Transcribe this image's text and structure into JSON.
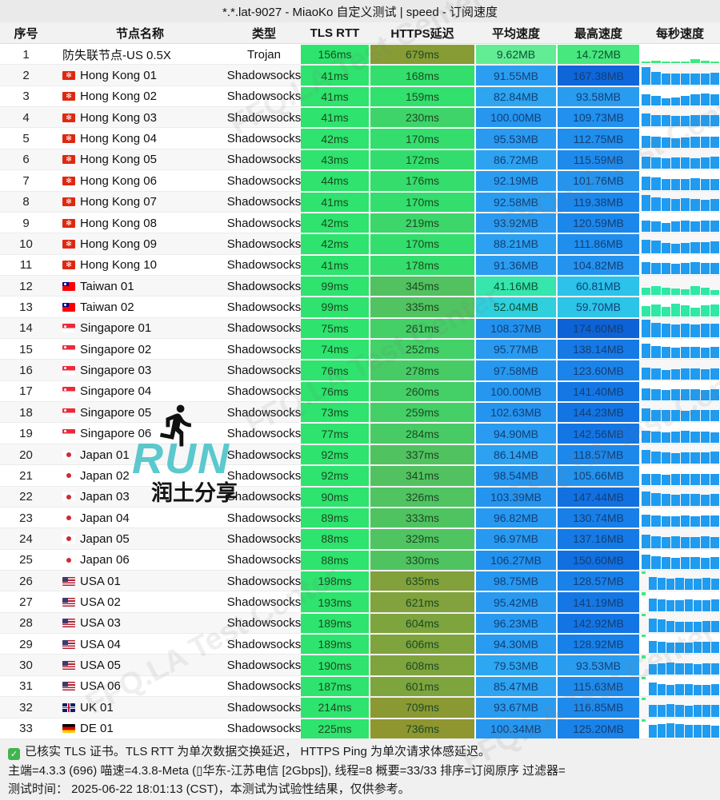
{
  "title": "*.*.lat-9027 - MiaoKo 自定义测试 | speed - 订阅速度",
  "columns": [
    {
      "key": "index",
      "label": "序号"
    },
    {
      "key": "name",
      "label": "节点名称"
    },
    {
      "key": "type",
      "label": "类型"
    },
    {
      "key": "tls_rtt",
      "label": "TLS RTT"
    },
    {
      "key": "https_delay",
      "label": "HTTPS延迟"
    },
    {
      "key": "avg_speed",
      "label": "平均速度"
    },
    {
      "key": "max_speed",
      "label": "最高速度"
    },
    {
      "key": "per_second_speed",
      "label": "每秒速度"
    }
  ],
  "rows": [
    {
      "i": 1,
      "flag": "",
      "name": "防失联节点-US 0.5X",
      "type": "Trojan",
      "tls": "156ms",
      "https": "679ms",
      "avg": "9.62MB",
      "max": "14.72MB",
      "spark": {
        "c": "green",
        "lead": false,
        "bars": [
          0.1,
          0.13,
          0.1,
          0.12,
          0.11,
          0.22,
          0.16,
          0.1
        ]
      }
    },
    {
      "i": 2,
      "flag": "hk",
      "name": "Hong Kong 01",
      "type": "Shadowsocks",
      "tls": "41ms",
      "https": "168ms",
      "avg": "91.55MB",
      "max": "167.38MB",
      "spark": {
        "c": "blue",
        "lead": false,
        "bars": [
          0.95,
          0.66,
          0.6,
          0.58,
          0.6,
          0.57,
          0.6,
          0.62
        ]
      }
    },
    {
      "i": 3,
      "flag": "hk",
      "name": "Hong Kong 02",
      "type": "Shadowsocks",
      "tls": "41ms",
      "https": "159ms",
      "avg": "82.84MB",
      "max": "93.58MB",
      "spark": {
        "c": "blue",
        "lead": false,
        "bars": [
          0.6,
          0.52,
          0.38,
          0.45,
          0.52,
          0.6,
          0.66,
          0.62
        ]
      }
    },
    {
      "i": 4,
      "flag": "hk",
      "name": "Hong Kong 03",
      "type": "Shadowsocks",
      "tls": "41ms",
      "https": "230ms",
      "avg": "100.00MB",
      "max": "109.73MB",
      "spark": {
        "c": "blue",
        "lead": false,
        "bars": [
          0.7,
          0.64,
          0.6,
          0.58,
          0.56,
          0.6,
          0.63,
          0.6
        ]
      }
    },
    {
      "i": 5,
      "flag": "hk",
      "name": "Hong Kong 04",
      "type": "Shadowsocks",
      "tls": "42ms",
      "https": "170ms",
      "avg": "95.53MB",
      "max": "112.75MB",
      "spark": {
        "c": "blue",
        "lead": false,
        "bars": [
          0.62,
          0.6,
          0.55,
          0.52,
          0.56,
          0.6,
          0.58,
          0.6
        ]
      }
    },
    {
      "i": 6,
      "flag": "hk",
      "name": "Hong Kong 05",
      "type": "Shadowsocks",
      "tls": "43ms",
      "https": "172ms",
      "avg": "86.72MB",
      "max": "115.59MB",
      "spark": {
        "c": "blue",
        "lead": false,
        "bars": [
          0.66,
          0.6,
          0.56,
          0.6,
          0.62,
          0.58,
          0.6,
          0.64
        ]
      }
    },
    {
      "i": 7,
      "flag": "hk",
      "name": "Hong Kong 06",
      "type": "Shadowsocks",
      "tls": "44ms",
      "https": "176ms",
      "avg": "92.19MB",
      "max": "101.76MB",
      "spark": {
        "c": "blue",
        "lead": false,
        "bars": [
          0.72,
          0.66,
          0.6,
          0.56,
          0.6,
          0.63,
          0.6,
          0.58
        ]
      }
    },
    {
      "i": 8,
      "flag": "hk",
      "name": "Hong Kong 07",
      "type": "Shadowsocks",
      "tls": "41ms",
      "https": "170ms",
      "avg": "92.58MB",
      "max": "119.38MB",
      "spark": {
        "c": "blue",
        "lead": false,
        "bars": [
          0.85,
          0.72,
          0.68,
          0.64,
          0.66,
          0.62,
          0.6,
          0.64
        ]
      }
    },
    {
      "i": 9,
      "flag": "hk",
      "name": "Hong Kong 08",
      "type": "Shadowsocks",
      "tls": "42ms",
      "https": "219ms",
      "avg": "93.92MB",
      "max": "120.59MB",
      "spark": {
        "c": "blue",
        "lead": false,
        "bars": [
          0.6,
          0.55,
          0.5,
          0.55,
          0.6,
          0.58,
          0.62,
          0.6
        ]
      }
    },
    {
      "i": 10,
      "flag": "hk",
      "name": "Hong Kong 09",
      "type": "Shadowsocks",
      "tls": "42ms",
      "https": "170ms",
      "avg": "88.21MB",
      "max": "111.86MB",
      "spark": {
        "c": "blue",
        "lead": false,
        "bars": [
          0.7,
          0.66,
          0.55,
          0.5,
          0.56,
          0.6,
          0.58,
          0.62
        ]
      }
    },
    {
      "i": 11,
      "flag": "hk",
      "name": "Hong Kong 10",
      "type": "Shadowsocks",
      "tls": "41ms",
      "https": "178ms",
      "avg": "91.36MB",
      "max": "104.82MB",
      "spark": {
        "c": "blue",
        "lead": false,
        "bars": [
          0.64,
          0.6,
          0.58,
          0.56,
          0.6,
          0.62,
          0.6,
          0.58
        ]
      }
    },
    {
      "i": 12,
      "flag": "tw",
      "name": "Taiwan 01",
      "type": "Shadowsocks",
      "tls": "99ms",
      "https": "345ms",
      "avg": "41.16MB",
      "max": "60.81MB",
      "spark": {
        "c": "teal",
        "lead": false,
        "bars": [
          0.42,
          0.5,
          0.4,
          0.35,
          0.3,
          0.48,
          0.4,
          0.28
        ]
      }
    },
    {
      "i": 13,
      "flag": "tw",
      "name": "Taiwan 02",
      "type": "Shadowsocks",
      "tls": "99ms",
      "https": "335ms",
      "avg": "52.04MB",
      "max": "59.70MB",
      "spark": {
        "c": "teal",
        "lead": false,
        "bars": [
          0.55,
          0.62,
          0.5,
          0.66,
          0.58,
          0.45,
          0.6,
          0.62
        ]
      }
    },
    {
      "i": 14,
      "flag": "sg",
      "name": "Singapore 01",
      "type": "Shadowsocks",
      "tls": "75ms",
      "https": "261ms",
      "avg": "108.37MB",
      "max": "174.60MB",
      "spark": {
        "c": "blue",
        "lead": false,
        "bars": [
          0.95,
          0.78,
          0.72,
          0.7,
          0.72,
          0.7,
          0.72,
          0.74
        ]
      }
    },
    {
      "i": 15,
      "flag": "sg",
      "name": "Singapore 02",
      "type": "Shadowsocks",
      "tls": "74ms",
      "https": "252ms",
      "avg": "95.77MB",
      "max": "138.14MB",
      "spark": {
        "c": "blue",
        "lead": false,
        "bars": [
          0.8,
          0.66,
          0.6,
          0.56,
          0.6,
          0.62,
          0.58,
          0.6
        ]
      }
    },
    {
      "i": 16,
      "flag": "sg",
      "name": "Singapore 03",
      "type": "Shadowsocks",
      "tls": "76ms",
      "https": "278ms",
      "avg": "97.58MB",
      "max": "123.60MB",
      "spark": {
        "c": "blue",
        "lead": false,
        "bars": [
          0.62,
          0.58,
          0.52,
          0.56,
          0.6,
          0.58,
          0.56,
          0.6
        ]
      }
    },
    {
      "i": 17,
      "flag": "sg",
      "name": "Singapore 04",
      "type": "Shadowsocks",
      "tls": "76ms",
      "https": "260ms",
      "avg": "100.00MB",
      "max": "141.40MB",
      "spark": {
        "c": "blue",
        "lead": false,
        "bars": [
          0.66,
          0.62,
          0.58,
          0.6,
          0.62,
          0.6,
          0.58,
          0.62
        ]
      }
    },
    {
      "i": 18,
      "flag": "sg",
      "name": "Singapore 05",
      "type": "Shadowsocks",
      "tls": "73ms",
      "https": "259ms",
      "avg": "102.63MB",
      "max": "144.23MB",
      "spark": {
        "c": "blue",
        "lead": false,
        "bars": [
          0.7,
          0.64,
          0.6,
          0.62,
          0.58,
          0.6,
          0.62,
          0.6
        ]
      }
    },
    {
      "i": 19,
      "flag": "sg",
      "name": "Singapore 06",
      "type": "Shadowsocks",
      "tls": "77ms",
      "https": "284ms",
      "avg": "94.90MB",
      "max": "142.56MB",
      "spark": {
        "c": "blue",
        "lead": false,
        "bars": [
          0.64,
          0.6,
          0.56,
          0.58,
          0.62,
          0.6,
          0.58,
          0.56
        ]
      }
    },
    {
      "i": 20,
      "flag": "jp",
      "name": "Japan 01",
      "type": "Shadowsocks",
      "tls": "92ms",
      "https": "337ms",
      "avg": "86.14MB",
      "max": "118.57MB",
      "spark": {
        "c": "blue",
        "lead": false,
        "bars": [
          0.72,
          0.66,
          0.6,
          0.58,
          0.6,
          0.62,
          0.6,
          0.64
        ]
      }
    },
    {
      "i": 21,
      "flag": "jp",
      "name": "Japan 02",
      "type": "Shadowsocks",
      "tls": "92ms",
      "https": "341ms",
      "avg": "98.54MB",
      "max": "105.66MB",
      "spark": {
        "c": "blue",
        "lead": false,
        "bars": [
          0.6,
          0.56,
          0.52,
          0.56,
          0.58,
          0.6,
          0.56,
          0.58
        ]
      }
    },
    {
      "i": 22,
      "flag": "jp",
      "name": "Japan 03",
      "type": "Shadowsocks",
      "tls": "90ms",
      "https": "326ms",
      "avg": "103.39MB",
      "max": "147.44MB",
      "spark": {
        "c": "blue",
        "lead": false,
        "bars": [
          0.78,
          0.7,
          0.64,
          0.6,
          0.62,
          0.64,
          0.6,
          0.62
        ]
      }
    },
    {
      "i": 23,
      "flag": "jp",
      "name": "Japan 04",
      "type": "Shadowsocks",
      "tls": "89ms",
      "https": "333ms",
      "avg": "96.82MB",
      "max": "130.74MB",
      "spark": {
        "c": "blue",
        "lead": false,
        "bars": [
          0.64,
          0.6,
          0.56,
          0.58,
          0.6,
          0.58,
          0.6,
          0.62
        ]
      }
    },
    {
      "i": 24,
      "flag": "jp",
      "name": "Japan 05",
      "type": "Shadowsocks",
      "tls": "88ms",
      "https": "329ms",
      "avg": "96.97MB",
      "max": "137.16MB",
      "spark": {
        "c": "blue",
        "lead": false,
        "bars": [
          0.7,
          0.64,
          0.6,
          0.62,
          0.6,
          0.58,
          0.62,
          0.6
        ]
      }
    },
    {
      "i": 25,
      "flag": "jp",
      "name": "Japan 06",
      "type": "Shadowsocks",
      "tls": "88ms",
      "https": "330ms",
      "avg": "106.27MB",
      "max": "150.60MB",
      "spark": {
        "c": "blue",
        "lead": false,
        "bars": [
          0.76,
          0.7,
          0.66,
          0.62,
          0.64,
          0.66,
          0.62,
          0.64
        ]
      }
    },
    {
      "i": 26,
      "flag": "us",
      "name": "USA 01",
      "type": "Shadowsocks",
      "tls": "198ms",
      "https": "635ms",
      "avg": "98.75MB",
      "max": "128.57MB",
      "spark": {
        "c": "blue",
        "lead": true,
        "bars": [
          0.72,
          0.66,
          0.62,
          0.64,
          0.6,
          0.62,
          0.64,
          0.6
        ]
      }
    },
    {
      "i": 27,
      "flag": "us",
      "name": "USA 02",
      "type": "Shadowsocks",
      "tls": "193ms",
      "https": "621ms",
      "avg": "95.42MB",
      "max": "141.19MB",
      "spark": {
        "c": "blue",
        "lead": true,
        "bars": [
          0.66,
          0.62,
          0.58,
          0.6,
          0.62,
          0.6,
          0.58,
          0.62
        ]
      }
    },
    {
      "i": 28,
      "flag": "us",
      "name": "USA 03",
      "type": "Shadowsocks",
      "tls": "189ms",
      "https": "604ms",
      "avg": "96.23MB",
      "max": "142.92MB",
      "spark": {
        "c": "blue",
        "lead": true,
        "bars": [
          0.74,
          0.68,
          0.62,
          0.58,
          0.54,
          0.58,
          0.6,
          0.62
        ]
      }
    },
    {
      "i": 29,
      "flag": "us",
      "name": "USA 04",
      "type": "Shadowsocks",
      "tls": "189ms",
      "https": "606ms",
      "avg": "94.30MB",
      "max": "128.92MB",
      "spark": {
        "c": "blue",
        "lead": true,
        "bars": [
          0.64,
          0.6,
          0.58,
          0.56,
          0.58,
          0.6,
          0.62,
          0.6
        ]
      }
    },
    {
      "i": 30,
      "flag": "us",
      "name": "USA 05",
      "type": "Shadowsocks",
      "tls": "190ms",
      "https": "608ms",
      "avg": "79.53MB",
      "max": "93.53MB",
      "spark": {
        "c": "blue",
        "lead": true,
        "bars": [
          0.56,
          0.6,
          0.62,
          0.6,
          0.58,
          0.56,
          0.6,
          0.58
        ]
      }
    },
    {
      "i": 31,
      "flag": "us",
      "name": "USA 06",
      "type": "Shadowsocks",
      "tls": "187ms",
      "https": "601ms",
      "avg": "85.47MB",
      "max": "115.63MB",
      "spark": {
        "c": "blue",
        "lead": true,
        "bars": [
          0.68,
          0.62,
          0.58,
          0.6,
          0.62,
          0.58,
          0.56,
          0.6
        ]
      }
    },
    {
      "i": 32,
      "flag": "gb",
      "name": "UK 01",
      "type": "Shadowsocks",
      "tls": "214ms",
      "https": "709ms",
      "avg": "93.67MB",
      "max": "116.85MB",
      "spark": {
        "c": "blue",
        "lead": true,
        "bars": [
          0.6,
          0.64,
          0.68,
          0.62,
          0.58,
          0.62,
          0.64,
          0.6
        ]
      }
    },
    {
      "i": 33,
      "flag": "de",
      "name": "DE 01",
      "type": "Shadowsocks",
      "tls": "225ms",
      "https": "736ms",
      "avg": "100.34MB",
      "max": "125.20MB",
      "spark": {
        "c": "blue",
        "lead": true,
        "bars": [
          0.7,
          0.74,
          0.78,
          0.72,
          0.68,
          0.7,
          0.66,
          0.62
        ]
      }
    }
  ],
  "footer": {
    "check_icon": "✓",
    "line1": "已核实 TLS 证书。TLS RTT 为单次数据交换延迟， HTTPS Ping 为单次请求体感延迟。",
    "line2": "主端=4.3.3 (696) 喵速=4.3.8-Meta (▯华东-江苏电信 [2Gbps]), 线程=8 概要=33/33 排序=订阅原序 过滤器=",
    "line3": "测试时间： 2025-06-22 18:01:13 (CST)，本测试为试验性结果，仅供参考。"
  },
  "watermark": {
    "text": "FFQ.LA Test Center",
    "run_text": "RUN",
    "share_text": "润土分享"
  },
  "colors": {
    "tls_bg": "#2ee36e",
    "check_green": "#43b44d",
    "spark_palette": {
      "green": "#3ee97f",
      "blue": "#1f9bf0",
      "teal": "#2ee8a4",
      "lead_green": "#3ee97f"
    },
    "https_stops": [
      [
        150,
        "#2fe16e"
      ],
      [
        250,
        "#43d168"
      ],
      [
        350,
        "#53c05f"
      ],
      [
        600,
        "#7ea43e"
      ],
      [
        740,
        "#8f9630"
      ]
    ],
    "speed_stops": [
      [
        0,
        "#93f3b9"
      ],
      [
        10,
        "#60ec93"
      ],
      [
        15,
        "#45e87d"
      ],
      [
        30,
        "#3ce796"
      ],
      [
        41,
        "#36e6ab"
      ],
      [
        52,
        "#2fcfdd"
      ],
      [
        61,
        "#2cc2e9"
      ],
      [
        75,
        "#2fabf2"
      ],
      [
        90,
        "#2c9ff1"
      ],
      [
        100,
        "#2696ef"
      ],
      [
        110,
        "#2190ee"
      ],
      [
        120,
        "#1c87eb"
      ],
      [
        130,
        "#1880e9"
      ],
      [
        140,
        "#1478e5"
      ],
      [
        150,
        "#116fe0"
      ],
      [
        175,
        "#0d62d6"
      ]
    ],
    "latency_text": "#1c4a22",
    "speed_text_green": "#0b5134",
    "speed_text_blue": "#123f77"
  }
}
